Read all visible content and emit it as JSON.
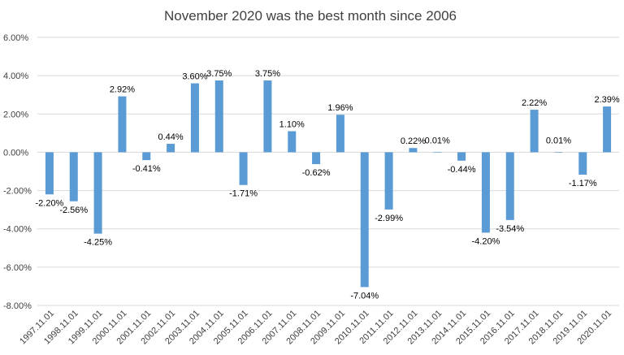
{
  "chart_data": {
    "type": "bar",
    "title": "November 2020 was the best month since 2006",
    "xlabel": "",
    "ylabel": "",
    "ylim": [
      -8,
      6
    ],
    "yticks": [
      6,
      4,
      2,
      0,
      -2,
      -4,
      -6,
      -8
    ],
    "ytick_labels": [
      "6.00%",
      "4.00%",
      "2.00%",
      "0.00%",
      "-2.00%",
      "-4.00%",
      "-6.00%",
      "-8.00%"
    ],
    "grid": true,
    "categories": [
      "1997.11.01",
      "1998.11.01",
      "1999.11.01",
      "2000.11.01",
      "2001.11.01",
      "2002.11.01",
      "2003.11.01",
      "2004.11.01",
      "2005.11.01",
      "2006.11.01",
      "2007.11.01",
      "2008.11.01",
      "2009.11.01",
      "2010.11.01",
      "2011.11.01",
      "2012.11.01",
      "2013.11.01",
      "2014.11.01",
      "2015.11.01",
      "2016.11.01",
      "2017.11.01",
      "2018.11.01",
      "2019.11.01",
      "2020.11.01"
    ],
    "values": [
      -2.2,
      -2.56,
      -4.25,
      2.92,
      -0.41,
      0.44,
      3.6,
      3.75,
      -1.71,
      3.75,
      1.1,
      -0.62,
      1.96,
      -7.04,
      -2.99,
      0.22,
      0.01,
      -0.44,
      -4.2,
      -3.54,
      2.22,
      0.01,
      -1.17,
      2.39
    ],
    "data_labels": [
      "-2.20%",
      "-2.56%",
      "-4.25%",
      "2.92%",
      "-0.41%",
      "0.44%",
      "3.60%",
      "3.75%",
      "-1.71%",
      "3.75%",
      "1.10%",
      "-0.62%",
      "1.96%",
      "-7.04%",
      "-2.99%",
      "0.22%",
      "0.01%",
      "-0.44%",
      "-4.20%",
      "-3.54%",
      "2.22%",
      "0.01%",
      "-1.17%",
      "2.39%"
    ],
    "colors": {
      "bar": "#5B9BD5",
      "grid": "#D9D9D9",
      "text": "#404040"
    }
  }
}
